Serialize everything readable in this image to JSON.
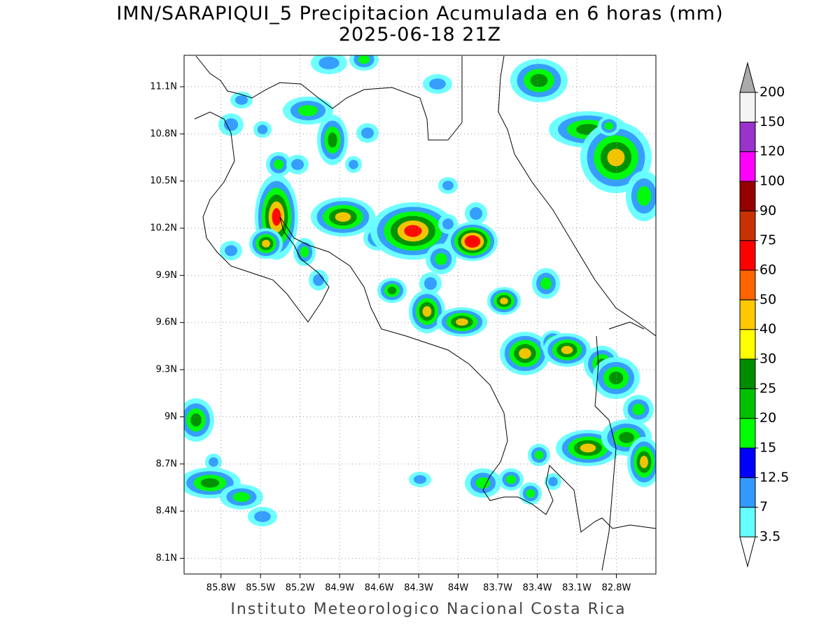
{
  "chart_data": {
    "type": "map",
    "title": "IMN/SARAPIQUI_5 Precipitacion Acumulada en 6 horas (mm)",
    "subtitle": "2025-06-18 21Z",
    "footer": "Instituto Meteorologico Nacional Costa Rica",
    "xlim": [
      -86.08,
      -82.5
    ],
    "ylim": [
      8.0,
      11.3
    ],
    "xticks": [
      {
        "value": -85.8,
        "label": "85.8W"
      },
      {
        "value": -85.5,
        "label": "85.5W"
      },
      {
        "value": -85.2,
        "label": "85.2W"
      },
      {
        "value": -84.9,
        "label": "84.9W"
      },
      {
        "value": -84.6,
        "label": "84.6W"
      },
      {
        "value": -84.3,
        "label": "84.3W"
      },
      {
        "value": -84.0,
        "label": "84W"
      },
      {
        "value": -83.7,
        "label": "83.7W"
      },
      {
        "value": -83.4,
        "label": "83.4W"
      },
      {
        "value": -83.1,
        "label": "83.1W"
      },
      {
        "value": -82.8,
        "label": "82.8W"
      }
    ],
    "yticks": [
      {
        "value": 8.1,
        "label": "8.1N"
      },
      {
        "value": 8.4,
        "label": "8.4N"
      },
      {
        "value": 8.7,
        "label": "8.7N"
      },
      {
        "value": 9.0,
        "label": "9N"
      },
      {
        "value": 9.3,
        "label": "9.3N"
      },
      {
        "value": 9.6,
        "label": "9.6N"
      },
      {
        "value": 9.9,
        "label": "9.9N"
      },
      {
        "value": 10.2,
        "label": "10.2N"
      },
      {
        "value": 10.5,
        "label": "10.5N"
      },
      {
        "value": 10.8,
        "label": "10.8N"
      },
      {
        "value": 11.1,
        "label": "11.1N"
      }
    ],
    "grid": true,
    "colorbar": {
      "levels": [
        3.5,
        7,
        12.5,
        15,
        20,
        25,
        30,
        40,
        50,
        60,
        75,
        90,
        100,
        120,
        150,
        200
      ],
      "colors": [
        "#ffffff",
        "#66ffff",
        "#3399ff",
        "#0000ff",
        "#00ff00",
        "#00c000",
        "#008c00",
        "#ffff00",
        "#ffc800",
        "#ff6400",
        "#ff0000",
        "#c83200",
        "#960000",
        "#ff00ff",
        "#9933cc",
        "#f4f4f4",
        "#aaaaaa"
      ]
    }
  }
}
